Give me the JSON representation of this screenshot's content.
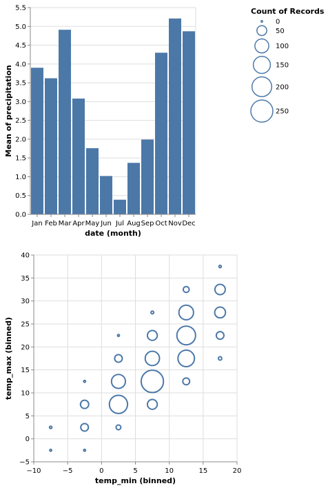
{
  "colors": {
    "mark": "#4c78a8",
    "grid": "#dddddd",
    "axis": "#888888"
  },
  "chart_data": [
    {
      "type": "bar",
      "xlabel": "date (month)",
      "ylabel": "Mean of precipitation",
      "categories": [
        "Jan",
        "Feb",
        "Mar",
        "Apr",
        "May",
        "Jun",
        "Jul",
        "Aug",
        "Sep",
        "Oct",
        "Nov",
        "Dec"
      ],
      "values": [
        3.9,
        3.62,
        4.91,
        3.08,
        1.76,
        1.02,
        0.39,
        1.37,
        1.99,
        4.3,
        5.21,
        4.87
      ],
      "ylim": [
        0,
        5.5
      ],
      "yticks": [
        "0.0",
        "0.5",
        "1.0",
        "1.5",
        "2.0",
        "2.5",
        "3.0",
        "3.5",
        "4.0",
        "4.5",
        "5.0",
        "5.5"
      ],
      "grid": true
    },
    {
      "type": "scatter",
      "xlabel": "temp_min (binned)",
      "ylabel": "temp_max (binned)",
      "xlim": [
        -10,
        20
      ],
      "ylim": [
        -5,
        40
      ],
      "xticks": [
        "−10",
        "−5",
        "0",
        "5",
        "10",
        "15",
        "20"
      ],
      "yticks": [
        "−5",
        "0",
        "5",
        "10",
        "15",
        "20",
        "25",
        "30",
        "35",
        "40"
      ],
      "grid": true,
      "size_field": "Count of Records",
      "points": [
        {
          "x": -7.5,
          "y": 2.5,
          "count": 3
        },
        {
          "x": -7.5,
          "y": -2.5,
          "count": 2
        },
        {
          "x": -2.5,
          "y": 12.5,
          "count": 2
        },
        {
          "x": -2.5,
          "y": 7.5,
          "count": 35
        },
        {
          "x": -2.5,
          "y": 2.5,
          "count": 30
        },
        {
          "x": -2.5,
          "y": -2.5,
          "count": 2
        },
        {
          "x": 2.5,
          "y": 22.5,
          "count": 2
        },
        {
          "x": 2.5,
          "y": 17.5,
          "count": 30
        },
        {
          "x": 2.5,
          "y": 12.5,
          "count": 100
        },
        {
          "x": 2.5,
          "y": 7.5,
          "count": 170
        },
        {
          "x": 2.5,
          "y": 2.5,
          "count": 12
        },
        {
          "x": 7.5,
          "y": 27.5,
          "count": 4
        },
        {
          "x": 7.5,
          "y": 22.5,
          "count": 50
        },
        {
          "x": 7.5,
          "y": 17.5,
          "count": 105
        },
        {
          "x": 7.5,
          "y": 12.5,
          "count": 255
        },
        {
          "x": 7.5,
          "y": 7.5,
          "count": 50
        },
        {
          "x": 12.5,
          "y": 32.5,
          "count": 18
        },
        {
          "x": 12.5,
          "y": 27.5,
          "count": 110
        },
        {
          "x": 12.5,
          "y": 22.5,
          "count": 180
        },
        {
          "x": 12.5,
          "y": 17.5,
          "count": 140
        },
        {
          "x": 12.5,
          "y": 12.5,
          "count": 24
        },
        {
          "x": 17.5,
          "y": 37.5,
          "count": 3
        },
        {
          "x": 17.5,
          "y": 32.5,
          "count": 55
        },
        {
          "x": 17.5,
          "y": 27.5,
          "count": 60
        },
        {
          "x": 17.5,
          "y": 22.5,
          "count": 30
        },
        {
          "x": 17.5,
          "y": 17.5,
          "count": 6
        }
      ]
    }
  ],
  "legend": {
    "title": "Count of Records",
    "entries": [
      {
        "label": "0",
        "value": 0
      },
      {
        "label": "50",
        "value": 50
      },
      {
        "label": "100",
        "value": 100
      },
      {
        "label": "150",
        "value": 150
      },
      {
        "label": "200",
        "value": 200
      },
      {
        "label": "250",
        "value": 250
      }
    ]
  }
}
